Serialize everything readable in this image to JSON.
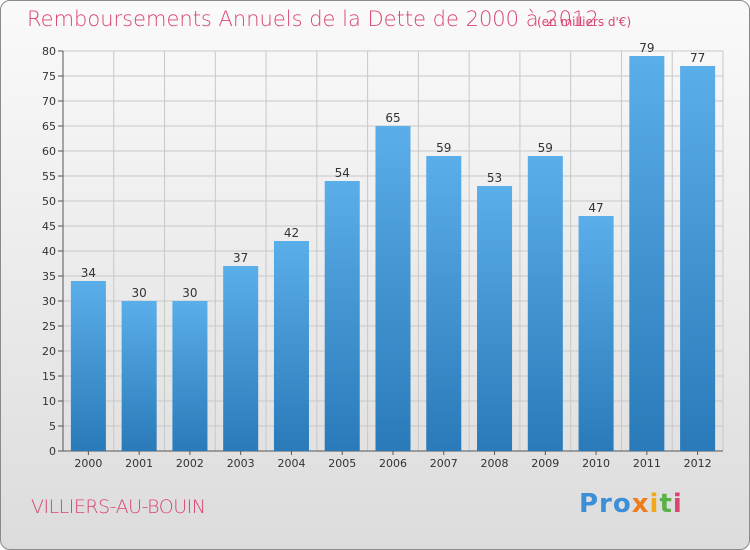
{
  "chart_data": {
    "type": "bar",
    "title": "Remboursements Annuels de la Dette de 2000 à 2012",
    "subtitle": "(en milliers d'€)",
    "categories": [
      "2000",
      "2001",
      "2002",
      "2003",
      "2004",
      "2005",
      "2006",
      "2007",
      "2008",
      "2009",
      "2010",
      "2011",
      "2012"
    ],
    "values": [
      34,
      30,
      30,
      37,
      42,
      54,
      65,
      59,
      53,
      59,
      47,
      79,
      77
    ],
    "ylim": [
      0,
      80
    ],
    "yticks": [
      0,
      5,
      10,
      15,
      20,
      25,
      30,
      35,
      40,
      45,
      50,
      55,
      60,
      65,
      70,
      75,
      80
    ],
    "grid": true,
    "bar_color_top": "#5aaee9",
    "bar_color_bottom": "#2a7ab9"
  },
  "footer": {
    "city": "VILLIERS-AU-BOUIN",
    "logo": [
      "Pro",
      "x",
      "i",
      "t",
      "i"
    ]
  },
  "colors": {
    "accent": "#d9456f"
  }
}
